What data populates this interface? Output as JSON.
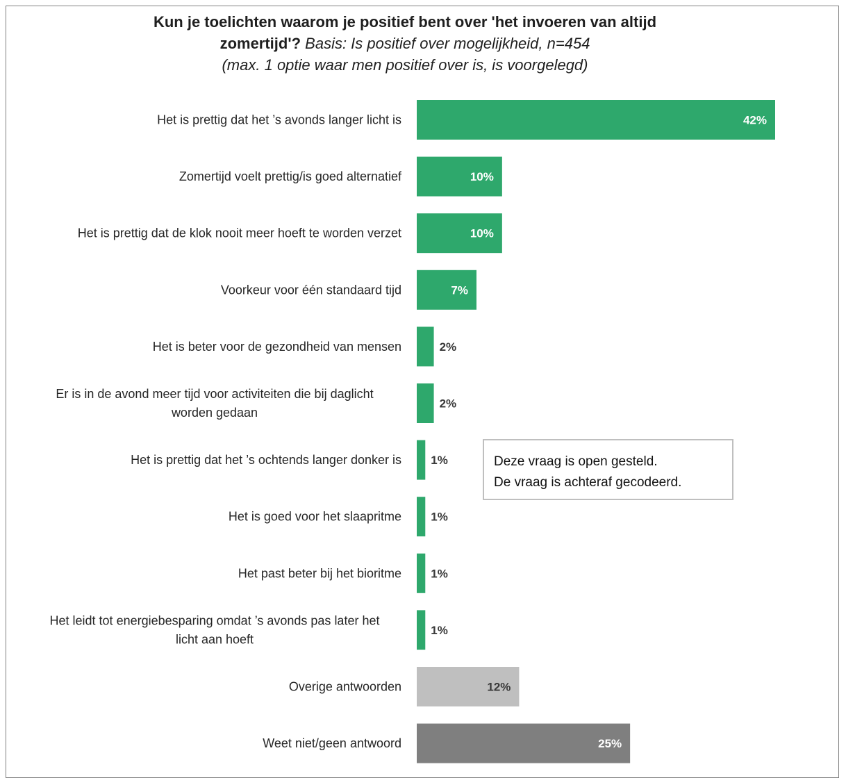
{
  "title": {
    "line1": "Kun je toelichten waarom je positief bent over 'het invoeren van altijd",
    "line2_bold": "zomertijd'?",
    "line2_italic": "Basis: Is positief over mogelijkheid, n=454",
    "line3": "(max. 1 optie waar men positief over is, is voorgelegd)"
  },
  "note": {
    "line1": "Deze vraag is open gesteld.",
    "line2": "De vraag is achteraf gecodeerd."
  },
  "colors": {
    "green": "#2ea86c",
    "light_grey": "#bfbfbf",
    "dark_grey": "#7f7f7f",
    "label_dark": "#3a3a3a"
  },
  "chart_data": {
    "type": "bar",
    "orientation": "horizontal",
    "unit": "%",
    "xlim": [
      0,
      42
    ],
    "grid": false,
    "categories": [
      [
        "Het is prettig dat het ’s avonds langer licht is"
      ],
      [
        "Zomertijd voelt prettig/is goed alternatief"
      ],
      [
        "Het is prettig dat de klok nooit meer hoeft te worden verzet"
      ],
      [
        "Voorkeur voor één standaard tijd"
      ],
      [
        "Het is beter voor de gezondheid van mensen"
      ],
      [
        "Er is in de avond meer tijd voor activiteiten die bij daglicht",
        "worden gedaan"
      ],
      [
        "Het is prettig dat het ’s ochtends langer donker is"
      ],
      [
        "Het is goed voor het slaapritme"
      ],
      [
        "Het past beter bij het bioritme"
      ],
      [
        "Het leidt tot energiebesparing omdat ’s avonds pas later het",
        "licht aan hoeft"
      ],
      [
        "Overige antwoorden"
      ],
      [
        "Weet niet/geen antwoord"
      ]
    ],
    "values": [
      42,
      10,
      10,
      7,
      2,
      2,
      1,
      1,
      1,
      1,
      12,
      25
    ],
    "value_labels": [
      "42%",
      "10%",
      "10%",
      "7%",
      "2%",
      "2%",
      "1%",
      "1%",
      "1%",
      "1%",
      "12%",
      "25%"
    ],
    "bar_colors": [
      "green",
      "green",
      "green",
      "green",
      "green",
      "green",
      "green",
      "green",
      "green",
      "green",
      "light_grey",
      "dark_grey"
    ]
  }
}
